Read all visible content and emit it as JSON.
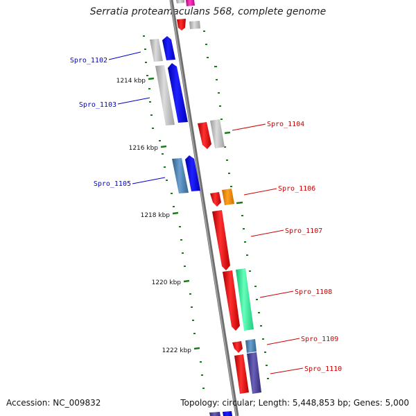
{
  "title": "Serratia proteamaculans 568, complete genome",
  "accession": "Accession: NC_009832",
  "summary": "Topology: circular; Length: 5,448,853 bp; Genes: 5,000",
  "kbp_labels": [
    "1214 kbp",
    "1216 kbp",
    "1218 kbp",
    "1220 kbp",
    "1222 kbp"
  ],
  "genes_left": [
    "Spro_1102",
    "Spro_1103",
    "Spro_1105"
  ],
  "genes_right": [
    "Spro_1104",
    "Spro_1106",
    "Spro_1107",
    "Spro_1108",
    "Spro_1109",
    "Spro_1110"
  ],
  "colors": {
    "left_label": "#0000cc",
    "right_label": "#cc0000",
    "tick": "#1a7a1a",
    "backbone": "#808080",
    "red": "#ff0000",
    "blue": "#0000ff",
    "gray": "#bbbbbb",
    "steelblue": "#4682b4",
    "orange": "#ff8c00",
    "mint": "#33ff99",
    "purple": "#483d8b"
  }
}
